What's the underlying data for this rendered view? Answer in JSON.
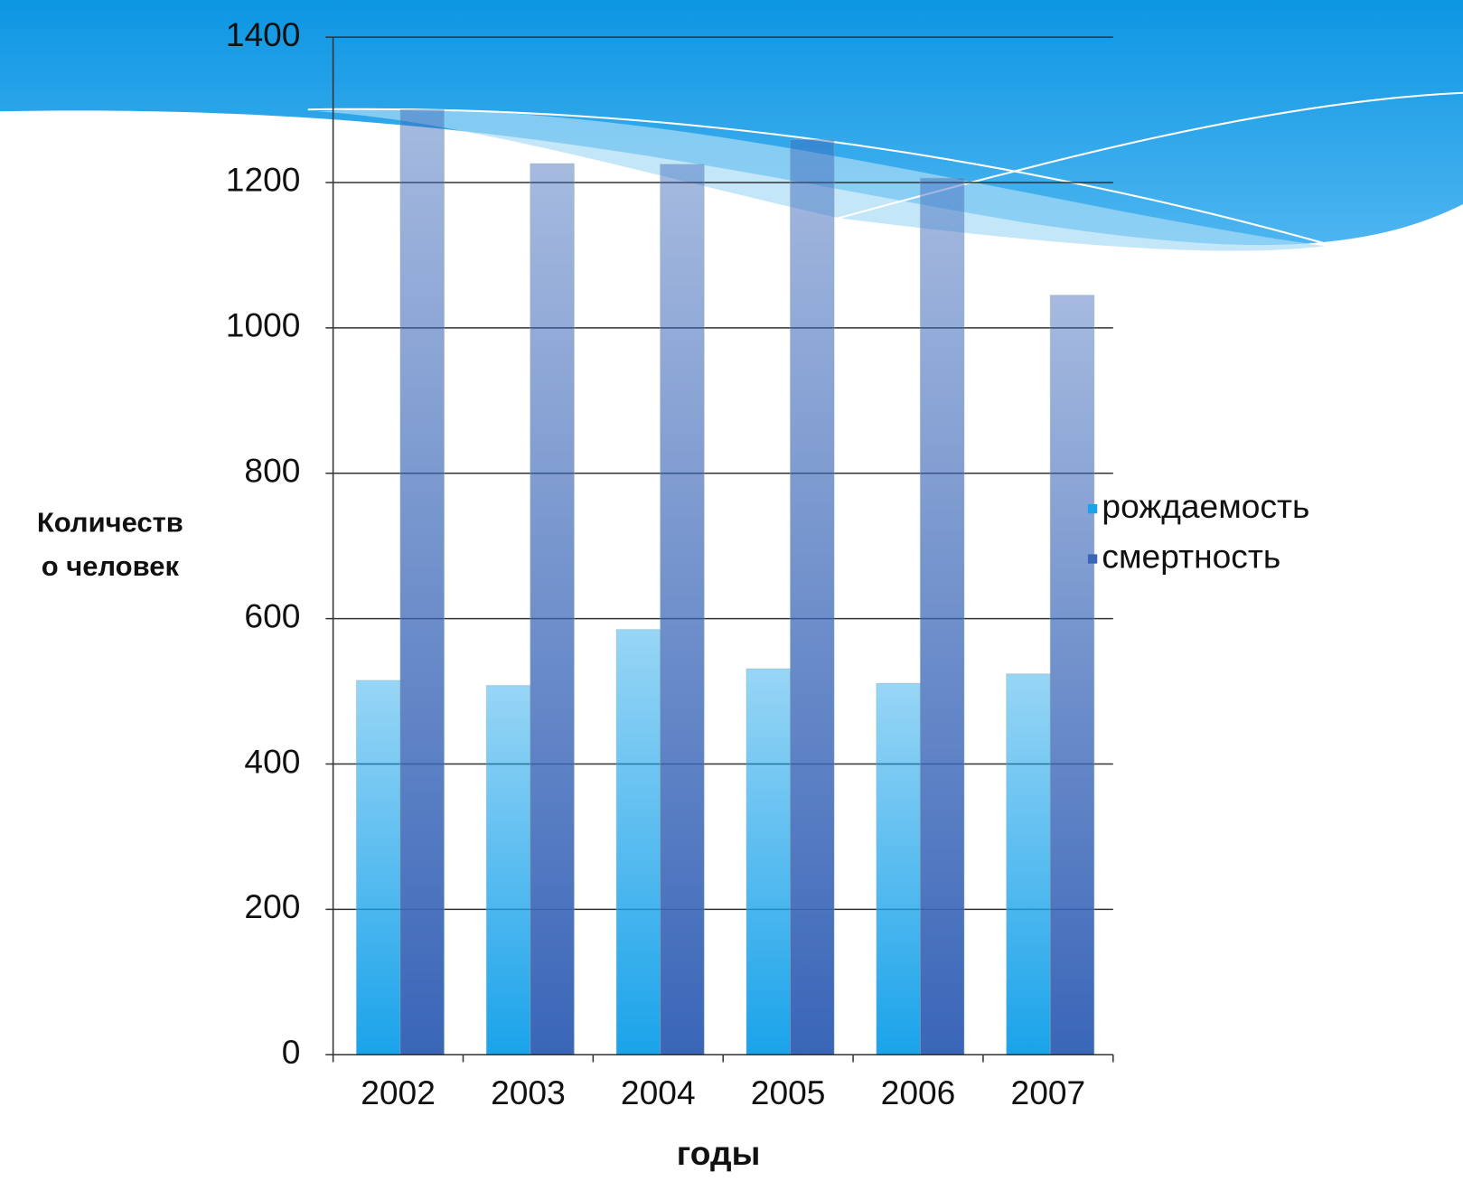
{
  "chart_data": {
    "type": "bar",
    "y_label": [
      "Количеств",
      "о человек"
    ],
    "x_label": "годы",
    "categories": [
      "2002",
      "2003",
      "2004",
      "2005",
      "2006",
      "2007"
    ],
    "series": [
      {
        "name": "рождаемость",
        "color": "#1aa3ea",
        "values": [
          515,
          508,
          585,
          531,
          511,
          524
        ]
      },
      {
        "name": "смертность",
        "color": "#3a66b8",
        "values": [
          1300,
          1226,
          1225,
          1259,
          1206,
          1045
        ]
      }
    ],
    "ylim": [
      0,
      1400
    ],
    "yticks": [
      0,
      200,
      400,
      600,
      800,
      1000,
      1200,
      1400
    ],
    "grid": true,
    "legend": "right"
  }
}
